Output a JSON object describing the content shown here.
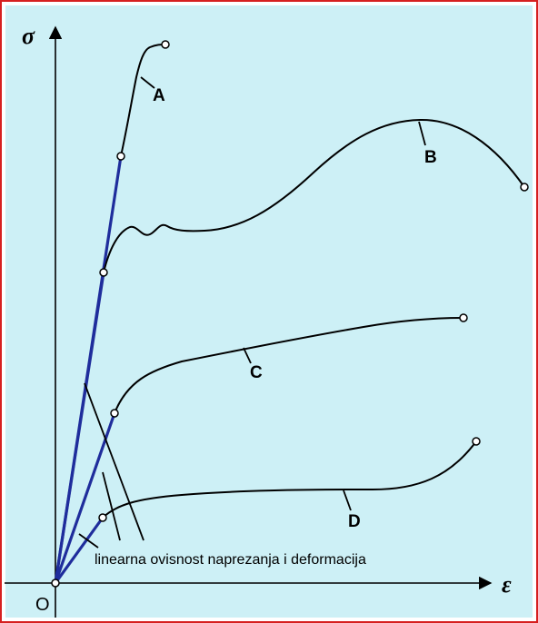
{
  "diagram": {
    "axes": {
      "y_symbol": "σ",
      "x_symbol": "ε",
      "origin_label": "O"
    },
    "curves": [
      {
        "label": "A"
      },
      {
        "label": "B"
      },
      {
        "label": "C"
      },
      {
        "label": "D"
      }
    ],
    "annotation": "linearna ovisnost naprezanja i deformacija",
    "colors": {
      "background": "#cdf0f6",
      "frame": "#d62020",
      "linear_segment": "#1f2d9c",
      "curve": "#000000"
    }
  }
}
